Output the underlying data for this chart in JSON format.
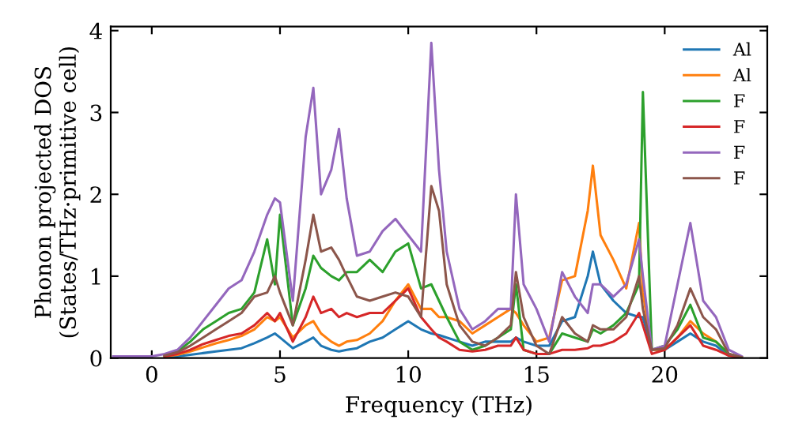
{
  "chart_data": {
    "type": "line",
    "xlabel": "Frequency (THz)",
    "ylabel": "Phonon projected DOS\n(States/THz·primitive cell)",
    "x": [
      -1.5,
      -1,
      -0.5,
      0,
      0.5,
      1,
      1.5,
      2,
      2.5,
      3,
      3.5,
      4,
      4.5,
      4.8,
      5,
      5.5,
      6,
      6.3,
      6.6,
      7,
      7.3,
      7.6,
      8,
      8.5,
      9,
      9.5,
      10,
      10.5,
      10.9,
      11.2,
      11.5,
      12,
      12.5,
      13,
      13.5,
      14,
      14.2,
      14.5,
      15,
      15.5,
      16,
      16.5,
      17,
      17.2,
      17.5,
      18,
      18.5,
      19,
      19.15,
      19.5,
      20,
      20.5,
      21,
      21.5,
      22,
      22.5,
      23
    ],
    "series": [
      {
        "name": "Al",
        "color": "#1f77b4",
        "values": [
          null,
          null,
          null,
          null,
          0.01,
          0.02,
          0.04,
          0.06,
          0.08,
          0.1,
          0.12,
          0.18,
          0.25,
          0.3,
          0.25,
          0.12,
          0.2,
          0.25,
          0.15,
          0.1,
          0.08,
          0.1,
          0.12,
          0.2,
          0.25,
          0.35,
          0.45,
          0.35,
          0.3,
          0.28,
          0.25,
          0.2,
          0.15,
          0.2,
          0.2,
          0.2,
          0.25,
          0.2,
          0.15,
          0.15,
          0.45,
          0.5,
          1.0,
          1.3,
          0.9,
          0.7,
          0.55,
          0.5,
          0.5,
          0.1,
          0.1,
          0.2,
          0.3,
          0.2,
          0.15,
          0.03,
          0.01
        ]
      },
      {
        "name": "Al",
        "color": "#ff7f0e",
        "values": [
          null,
          null,
          null,
          null,
          0.02,
          0.04,
          0.08,
          0.13,
          0.18,
          0.22,
          0.27,
          0.35,
          0.5,
          0.45,
          0.5,
          0.25,
          0.4,
          0.45,
          0.3,
          0.2,
          0.15,
          0.2,
          0.22,
          0.3,
          0.45,
          0.7,
          0.9,
          0.6,
          0.6,
          0.5,
          0.5,
          0.45,
          0.3,
          0.4,
          0.5,
          0.6,
          0.55,
          0.4,
          0.2,
          0.25,
          0.95,
          1.0,
          1.8,
          2.35,
          1.5,
          1.2,
          0.85,
          1.65,
          0.8,
          0.1,
          0.1,
          0.25,
          0.45,
          0.3,
          0.2,
          0.05,
          0.01
        ]
      },
      {
        "name": "F",
        "color": "#2ca02c",
        "values": [
          null,
          null,
          null,
          null,
          0.03,
          0.08,
          0.2,
          0.35,
          0.45,
          0.55,
          0.6,
          0.8,
          1.45,
          0.9,
          1.75,
          0.4,
          0.85,
          1.25,
          1.1,
          1.0,
          0.95,
          1.05,
          1.05,
          1.2,
          1.05,
          1.3,
          1.4,
          0.85,
          0.9,
          0.7,
          0.5,
          0.2,
          0.1,
          0.15,
          0.25,
          0.35,
          0.9,
          0.1,
          0.05,
          0.05,
          0.3,
          0.25,
          0.2,
          0.35,
          0.3,
          0.4,
          0.55,
          0.9,
          3.25,
          0.1,
          0.15,
          0.35,
          0.65,
          0.25,
          0.2,
          0.05,
          0.01
        ]
      },
      {
        "name": "F",
        "color": "#d62728",
        "values": [
          null,
          null,
          null,
          null,
          0.02,
          0.05,
          0.1,
          0.17,
          0.22,
          0.27,
          0.3,
          0.4,
          0.55,
          0.45,
          0.55,
          0.2,
          0.5,
          0.75,
          0.55,
          0.6,
          0.5,
          0.55,
          0.5,
          0.55,
          0.55,
          0.7,
          0.85,
          0.5,
          0.35,
          0.25,
          0.2,
          0.1,
          0.08,
          0.1,
          0.15,
          0.15,
          0.25,
          0.1,
          0.05,
          0.05,
          0.1,
          0.1,
          0.12,
          0.15,
          0.15,
          0.2,
          0.3,
          0.55,
          0.4,
          0.05,
          0.1,
          0.25,
          0.4,
          0.15,
          0.1,
          0.03,
          0.01
        ]
      },
      {
        "name": "F",
        "color": "#9467bd",
        "values": [
          0.02,
          0.02,
          0.02,
          0.02,
          0.05,
          0.1,
          0.25,
          0.45,
          0.65,
          0.85,
          0.95,
          1.3,
          1.75,
          1.95,
          1.9,
          0.7,
          2.7,
          3.3,
          2.0,
          2.3,
          2.8,
          1.95,
          1.25,
          1.3,
          1.55,
          1.7,
          1.5,
          1.3,
          3.85,
          2.3,
          1.3,
          0.6,
          0.35,
          0.45,
          0.6,
          0.6,
          2.0,
          0.9,
          0.6,
          0.2,
          1.05,
          0.75,
          0.55,
          0.9,
          0.9,
          0.75,
          0.9,
          1.45,
          1.0,
          0.1,
          0.15,
          0.9,
          1.65,
          0.7,
          0.5,
          0.1,
          0.02
        ]
      },
      {
        "name": "F",
        "color": "#8c564b",
        "values": [
          null,
          null,
          null,
          null,
          0.03,
          0.07,
          0.15,
          0.25,
          0.35,
          0.45,
          0.55,
          0.75,
          0.8,
          1.0,
          0.8,
          0.4,
          1.2,
          1.75,
          1.3,
          1.35,
          1.2,
          1.0,
          0.75,
          0.7,
          0.75,
          0.8,
          0.75,
          0.5,
          2.1,
          1.8,
          0.9,
          0.4,
          0.2,
          0.15,
          0.25,
          0.4,
          1.05,
          0.5,
          0.15,
          0.05,
          0.5,
          0.3,
          0.2,
          0.4,
          0.35,
          0.35,
          0.5,
          1.0,
          0.6,
          0.1,
          0.12,
          0.4,
          0.85,
          0.5,
          0.35,
          0.05,
          0.01
        ]
      }
    ],
    "xlim": [
      -1.6,
      24
    ],
    "ylim": [
      0,
      4.05
    ],
    "xticks": [
      0,
      5,
      10,
      15,
      20
    ],
    "yticks": [
      0,
      1,
      2,
      3,
      4
    ],
    "legend": "top right",
    "grid": false
  }
}
